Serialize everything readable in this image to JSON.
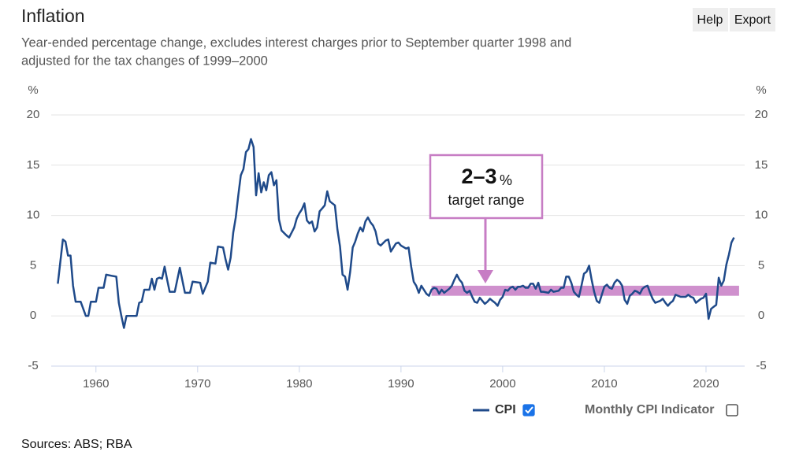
{
  "toolbar": [
    "Help",
    "Export"
  ],
  "source": "Sources: ABS; RBA",
  "chart_data": {
    "type": "line",
    "title": "Inflation",
    "subtitle": [
      "Year-ended percentage change, excludes interest charges prior to September quarter 1998 and",
      "adjusted for the tax changes of 1999–2000"
    ],
    "y_label": "%",
    "y2_label": "%",
    "xlim": [
      1955.6,
      2023.8
    ],
    "xticks": [
      1960,
      1970,
      1980,
      1990,
      2000,
      2010,
      2020
    ],
    "ylim": [
      -5,
      20
    ],
    "yticks": [
      -5,
      0,
      5,
      10,
      15,
      20
    ],
    "y2lim": [
      -5,
      20
    ],
    "y2ticks": [
      -5,
      0,
      5,
      10,
      15,
      20
    ],
    "grid": true,
    "x": [
      1956.25,
      1956.75,
      1957,
      1957.25,
      1957.5,
      1957.75,
      1958,
      1958.5,
      1959,
      1959.25,
      1959.5,
      1960,
      1960.25,
      1960.75,
      1961,
      1961.5,
      1962,
      1962.25,
      1962.5,
      1962.75,
      1963,
      1963.5,
      1964,
      1964.25,
      1964.5,
      1964.75,
      1965.25,
      1965.5,
      1965.75,
      1966,
      1966.25,
      1966.5,
      1966.75,
      1967,
      1967.25,
      1967.75,
      1968,
      1968.25,
      1968.5,
      1968.75,
      1969.25,
      1969.5,
      1970.25,
      1970.5,
      1971,
      1971.25,
      1971.75,
      1972,
      1972.5,
      1972.75,
      1973,
      1973.25,
      1973.5,
      1973.75,
      1974,
      1974.25,
      1974.5,
      1974.75,
      1975,
      1975.25,
      1975.5,
      1975.75,
      1976,
      1976.25,
      1976.5,
      1976.75,
      1977,
      1977.25,
      1977.5,
      1977.75,
      1978,
      1978.25,
      1978.75,
      1979,
      1979.5,
      1979.75,
      1980,
      1980.25,
      1980.5,
      1980.75,
      1981,
      1981.25,
      1981.5,
      1981.75,
      1982,
      1982.25,
      1982.5,
      1982.75,
      1983,
      1983.25,
      1983.5,
      1983.75,
      1984,
      1984.25,
      1984.5,
      1984.75,
      1985,
      1985.25,
      1985.5,
      1985.75,
      1986,
      1986.25,
      1986.5,
      1986.75,
      1987,
      1987.25,
      1987.5,
      1987.75,
      1988,
      1988.5,
      1988.75,
      1989,
      1989.5,
      1989.75,
      1990,
      1990.5,
      1990.75,
      1991,
      1991.25,
      1991.5,
      1991.75,
      1992,
      1992.25,
      1992.5,
      1992.75,
      1993,
      1993.25,
      1993.5,
      1993.75,
      1994,
      1994.25,
      1994.5,
      1994.75,
      1995,
      1995.25,
      1995.5,
      1995.75,
      1996,
      1996.25,
      1996.5,
      1996.75,
      1997,
      1997.25,
      1997.5,
      1997.75,
      1998,
      1998.25,
      1998.5,
      1998.75,
      1999,
      1999.25,
      1999.5,
      1999.75,
      2000,
      2000.25,
      2000.5,
      2000.75,
      2001,
      2001.25,
      2001.5,
      2001.75,
      2002,
      2002.25,
      2002.5,
      2002.75,
      2003,
      2003.25,
      2003.5,
      2003.75,
      2004,
      2004.5,
      2004.75,
      2005,
      2005.5,
      2005.75,
      2006,
      2006.25,
      2006.5,
      2006.75,
      2007,
      2007.25,
      2007.5,
      2007.75,
      2008,
      2008.25,
      2008.5,
      2008.75,
      2009,
      2009.25,
      2009.5,
      2009.75,
      2010,
      2010.25,
      2010.5,
      2010.75,
      2011,
      2011.25,
      2011.5,
      2011.75,
      2012,
      2012.25,
      2012.5,
      2012.75,
      2013,
      2013.25,
      2013.5,
      2013.75,
      2014,
      2014.25,
      2014.5,
      2014.75,
      2015,
      2015.5,
      2015.75,
      2016,
      2016.25,
      2016.5,
      2016.75,
      2017,
      2017.5,
      2017.75,
      2018,
      2018.25,
      2018.5,
      2018.75,
      2019,
      2019.5,
      2019.75,
      2020,
      2020.25,
      2020.5,
      2020.75,
      2021,
      2021.25,
      2021.5,
      2021.75,
      2022,
      2022.25,
      2022.5,
      2022.75
    ],
    "series": [
      {
        "name": "CPI",
        "color": "#1f4a8a",
        "checked": true,
        "values": [
          3.2,
          7.6,
          7.4,
          6.0,
          6.0,
          3.0,
          1.4,
          1.4,
          0,
          0,
          1.4,
          1.4,
          2.8,
          2.8,
          4.1,
          4.0,
          3.9,
          1.3,
          0,
          -1.2,
          0,
          0,
          0,
          1.3,
          1.4,
          2.6,
          2.6,
          3.7,
          2.6,
          3.7,
          3.8,
          3.7,
          4.9,
          3.6,
          2.4,
          2.4,
          3.6,
          4.8,
          3.5,
          2.3,
          2.3,
          3.4,
          3.3,
          2.2,
          3.4,
          5.3,
          5.2,
          6.9,
          6.8,
          5.6,
          4.6,
          5.8,
          8.3,
          9.8,
          12.0,
          14.0,
          14.6,
          16.3,
          16.6,
          17.6,
          16.8,
          12.0,
          14.2,
          12.3,
          13.3,
          12.5,
          14.0,
          14.3,
          13.0,
          13.5,
          9.6,
          8.5,
          8.0,
          7.8,
          8.8,
          9.7,
          10.2,
          10.6,
          11.2,
          9.5,
          9.2,
          9.4,
          8.4,
          8.8,
          10.4,
          10.7,
          11.0,
          12.4,
          11.4,
          11.2,
          11.0,
          8.6,
          6.9,
          4.1,
          3.9,
          2.6,
          4.4,
          6.8,
          7.4,
          8.2,
          8.8,
          8.4,
          9.4,
          9.8,
          9.3,
          9.0,
          8.4,
          7.2,
          7.0,
          7.5,
          7.6,
          6.4,
          7.2,
          7.3,
          7.0,
          6.7,
          6.8,
          4.9,
          3.4,
          3.0,
          2.3,
          3.0,
          2.6,
          2.2,
          2.0,
          2.6,
          2.8,
          2.7,
          2.2,
          2.6,
          2.3,
          2.5,
          2.7,
          3.0,
          3.6,
          4.1,
          3.6,
          3.3,
          2.5,
          2.3,
          2.5,
          1.9,
          1.4,
          1.3,
          1.8,
          1.5,
          1.2,
          1.4,
          1.7,
          1.5,
          1.3,
          1.0,
          1.6,
          1.9,
          2.6,
          2.5,
          2.8,
          2.9,
          2.6,
          2.9,
          2.9,
          3.0,
          2.8,
          2.8,
          3.2,
          3.2,
          2.7,
          3.3,
          2.4,
          2.4,
          2.3,
          2.6,
          2.4,
          2.5,
          2.8,
          2.8,
          3.9,
          3.9,
          3.3,
          2.4,
          2.1,
          1.9,
          3.0,
          4.2,
          4.4,
          5.0,
          3.6,
          2.4,
          1.5,
          1.3,
          2.1,
          2.9,
          3.1,
          2.8,
          2.7,
          3.3,
          3.6,
          3.4,
          3.0,
          1.6,
          1.2,
          2.0,
          2.2,
          2.5,
          2.4,
          2.2,
          2.7,
          2.9,
          3.0,
          2.3,
          1.7,
          1.3,
          1.5,
          1.7,
          1.3,
          1.0,
          1.3,
          1.5,
          2.1,
          1.9,
          1.9,
          1.9,
          2.1,
          1.9,
          1.8,
          1.3,
          1.7,
          1.8,
          2.2,
          -0.3,
          0.7,
          0.9,
          1.1,
          3.8,
          3.0,
          3.5,
          5.1,
          6.1,
          7.3,
          7.8
        ]
      }
    ],
    "legend_extra": {
      "name": "Monthly CPI Indicator",
      "checked": false
    },
    "annotation": {
      "label": "2–3",
      "unit": "%",
      "text": "target range",
      "band": [
        2,
        3
      ],
      "xrange": [
        1993,
        2023.25
      ],
      "color": "#c77dc4"
    }
  }
}
